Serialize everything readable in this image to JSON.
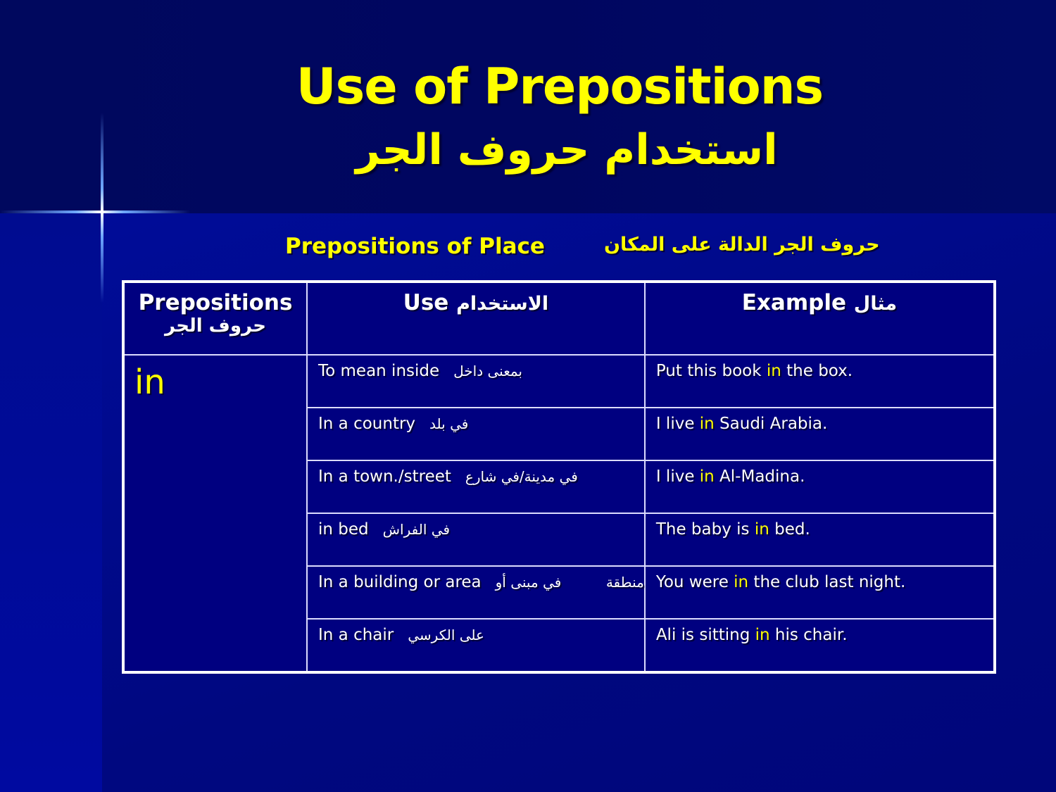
{
  "title_en": "Use of Prepositions",
  "title_ar": "استخدام حروف الجر",
  "subtitle_en": "Prepositions of Place",
  "subtitle_ar": "حروف الجر الدالة على المكان",
  "headers": {
    "prepositions": "Prepositions",
    "prepositions_ar": "حروف الجر",
    "use": "Use",
    "use_ar": "الاستخدام",
    "example": "Example",
    "example_ar": "مثال"
  },
  "preposition": "in",
  "rows": [
    {
      "use": "To mean inside",
      "use_ar": "بمعنى داخل",
      "ex_before": "Put this book ",
      "ex_hl": "in",
      "ex_after": " the box."
    },
    {
      "use": "In a country",
      "use_ar": "في بلد",
      "ex_before": "I live ",
      "ex_hl": "in",
      "ex_after": " Saudi Arabia."
    },
    {
      "use": "In a town./street",
      "use_ar": "في مدينة/في شارع",
      "ex_before": "I live ",
      "ex_hl": "in",
      "ex_after": " Al-Madina."
    },
    {
      "use": "in bed",
      "use_ar": "في الفراش",
      "ex_before": "The baby is ",
      "ex_hl": "in",
      "ex_after": " bed."
    },
    {
      "use": "In a building or area",
      "use_ar": "منطقة          في مبنى أو",
      "ex_before": "You were ",
      "ex_hl": "in",
      "ex_after": " the club last night."
    },
    {
      "use": "In a chair",
      "use_ar": "على الكرسي",
      "ex_before": "Ali is sitting ",
      "ex_hl": "in",
      "ex_after": " his chair."
    }
  ],
  "colors": {
    "background": "#000880",
    "highlight": "#ffff00",
    "text": "#ffffff"
  }
}
